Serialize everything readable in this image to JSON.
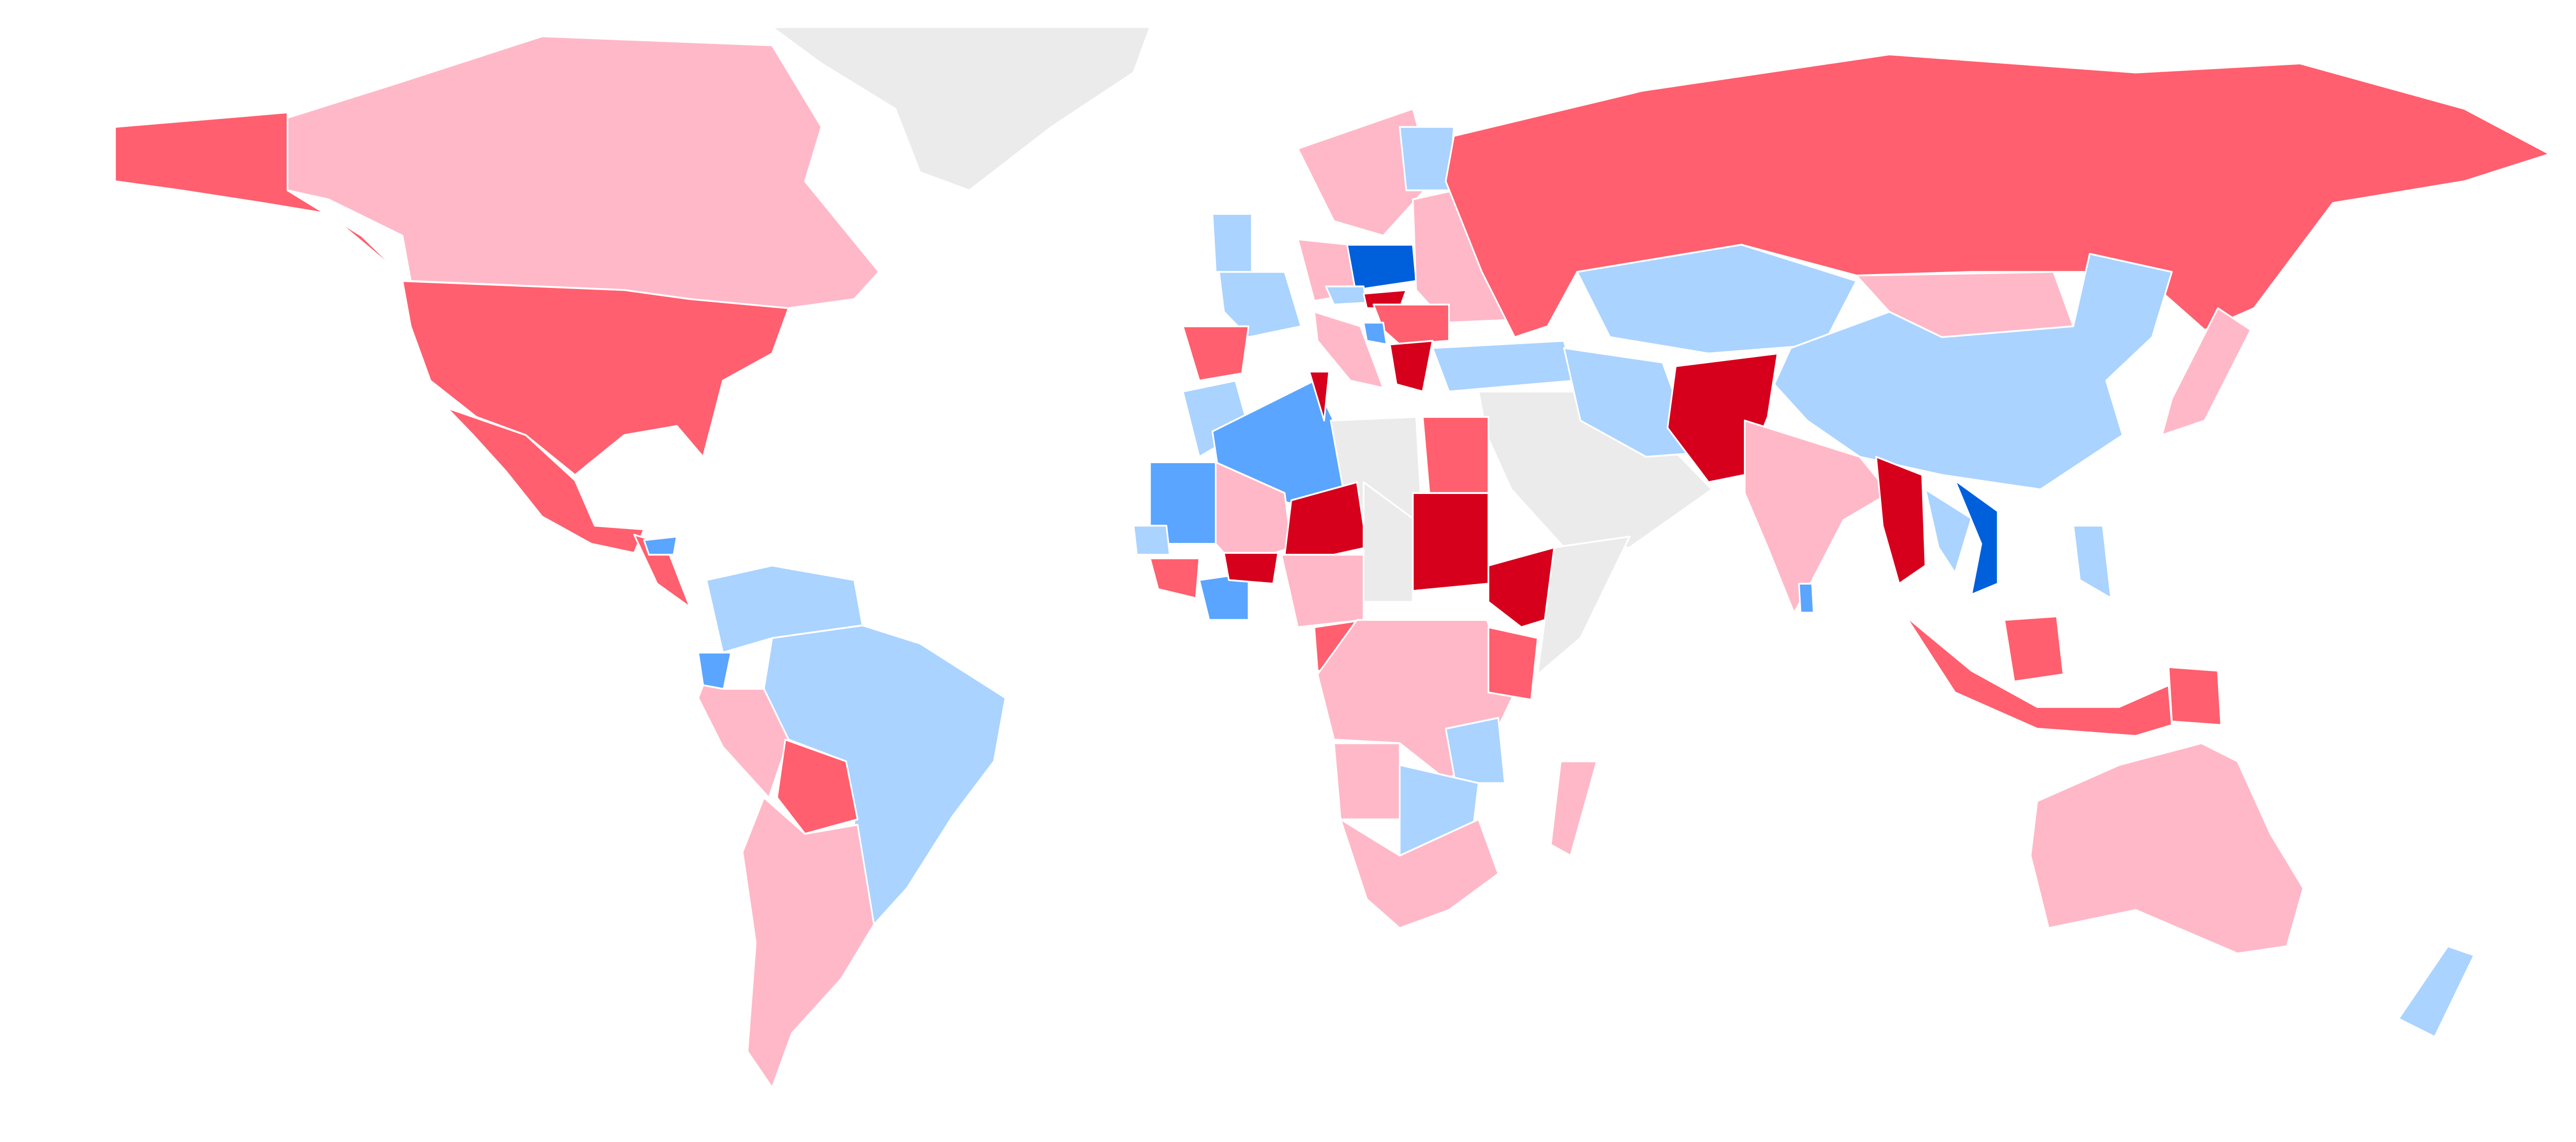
{
  "map": {
    "type": "choropleth",
    "projection": "world",
    "background": "#ffffff",
    "border_color": "#ffffff",
    "legend": "none",
    "palette": {
      "dark_red": "#d6001c",
      "red": "#ff5f6e",
      "pink": "#ffb8c8",
      "no_data": "#ebebeb",
      "light_blue": "#aad3ff",
      "blue": "#5aa5ff",
      "dark_blue": "#005fdb"
    },
    "regions": [
      {
        "id": "greenland",
        "class": "no_data"
      },
      {
        "id": "canada",
        "class": "pink"
      },
      {
        "id": "alaska",
        "class": "red"
      },
      {
        "id": "usa",
        "class": "red"
      },
      {
        "id": "mexico",
        "class": "red"
      },
      {
        "id": "central-america",
        "class": "red"
      },
      {
        "id": "honduras",
        "class": "blue"
      },
      {
        "id": "colombia-venezuela",
        "class": "light_blue"
      },
      {
        "id": "brazil",
        "class": "light_blue"
      },
      {
        "id": "ecuador",
        "class": "blue"
      },
      {
        "id": "peru",
        "class": "pink"
      },
      {
        "id": "bolivia",
        "class": "red"
      },
      {
        "id": "argentina-chile",
        "class": "pink"
      },
      {
        "id": "uk",
        "class": "light_blue"
      },
      {
        "id": "france",
        "class": "light_blue"
      },
      {
        "id": "spain",
        "class": "red"
      },
      {
        "id": "scandinavia",
        "class": "pink"
      },
      {
        "id": "finland",
        "class": "light_blue"
      },
      {
        "id": "germany",
        "class": "pink"
      },
      {
        "id": "poland",
        "class": "dark_blue"
      },
      {
        "id": "czechia",
        "class": "light_blue"
      },
      {
        "id": "slovakia",
        "class": "dark_red"
      },
      {
        "id": "eastern-europe",
        "class": "pink"
      },
      {
        "id": "balkans",
        "class": "red"
      },
      {
        "id": "bosnia",
        "class": "blue"
      },
      {
        "id": "italy",
        "class": "pink"
      },
      {
        "id": "greece",
        "class": "dark_red"
      },
      {
        "id": "turkey",
        "class": "light_blue"
      },
      {
        "id": "russia",
        "class": "red"
      },
      {
        "id": "kazakhstan",
        "class": "light_blue"
      },
      {
        "id": "mongolia",
        "class": "pink"
      },
      {
        "id": "china",
        "class": "light_blue"
      },
      {
        "id": "middle-east",
        "class": "no_data"
      },
      {
        "id": "iran",
        "class": "light_blue"
      },
      {
        "id": "afghanistan-pakistan",
        "class": "dark_red"
      },
      {
        "id": "india",
        "class": "pink"
      },
      {
        "id": "sri-lanka",
        "class": "blue"
      },
      {
        "id": "myanmar",
        "class": "dark_red"
      },
      {
        "id": "thailand",
        "class": "light_blue"
      },
      {
        "id": "vietnam",
        "class": "dark_blue"
      },
      {
        "id": "japan",
        "class": "pink"
      },
      {
        "id": "philippines",
        "class": "light_blue"
      },
      {
        "id": "indonesia",
        "class": "red"
      },
      {
        "id": "borneo",
        "class": "red"
      },
      {
        "id": "papua",
        "class": "red"
      },
      {
        "id": "australia",
        "class": "pink"
      },
      {
        "id": "new-zealand",
        "class": "light_blue"
      },
      {
        "id": "morocco",
        "class": "light_blue"
      },
      {
        "id": "algeria",
        "class": "blue"
      },
      {
        "id": "tunisia",
        "class": "dark_red"
      },
      {
        "id": "libya",
        "class": "no_data"
      },
      {
        "id": "egypt",
        "class": "red"
      },
      {
        "id": "mauritania",
        "class": "blue"
      },
      {
        "id": "mali",
        "class": "pink"
      },
      {
        "id": "niger",
        "class": "dark_red"
      },
      {
        "id": "chad",
        "class": "no_data"
      },
      {
        "id": "sudan",
        "class": "dark_red"
      },
      {
        "id": "ethiopia",
        "class": "dark_red"
      },
      {
        "id": "somalia",
        "class": "no_data"
      },
      {
        "id": "senegal",
        "class": "light_blue"
      },
      {
        "id": "guinea",
        "class": "red"
      },
      {
        "id": "ivory-coast",
        "class": "blue"
      },
      {
        "id": "burkina-faso",
        "class": "dark_red"
      },
      {
        "id": "nigeria",
        "class": "pink"
      },
      {
        "id": "cameroon",
        "class": "red"
      },
      {
        "id": "central-africa",
        "class": "pink"
      },
      {
        "id": "kenya",
        "class": "red"
      },
      {
        "id": "tanzania",
        "class": "light_blue"
      },
      {
        "id": "angola",
        "class": "pink"
      },
      {
        "id": "zambia-zimbabwe",
        "class": "light_blue"
      },
      {
        "id": "southern-africa",
        "class": "pink"
      },
      {
        "id": "madagascar",
        "class": "pink"
      }
    ]
  }
}
